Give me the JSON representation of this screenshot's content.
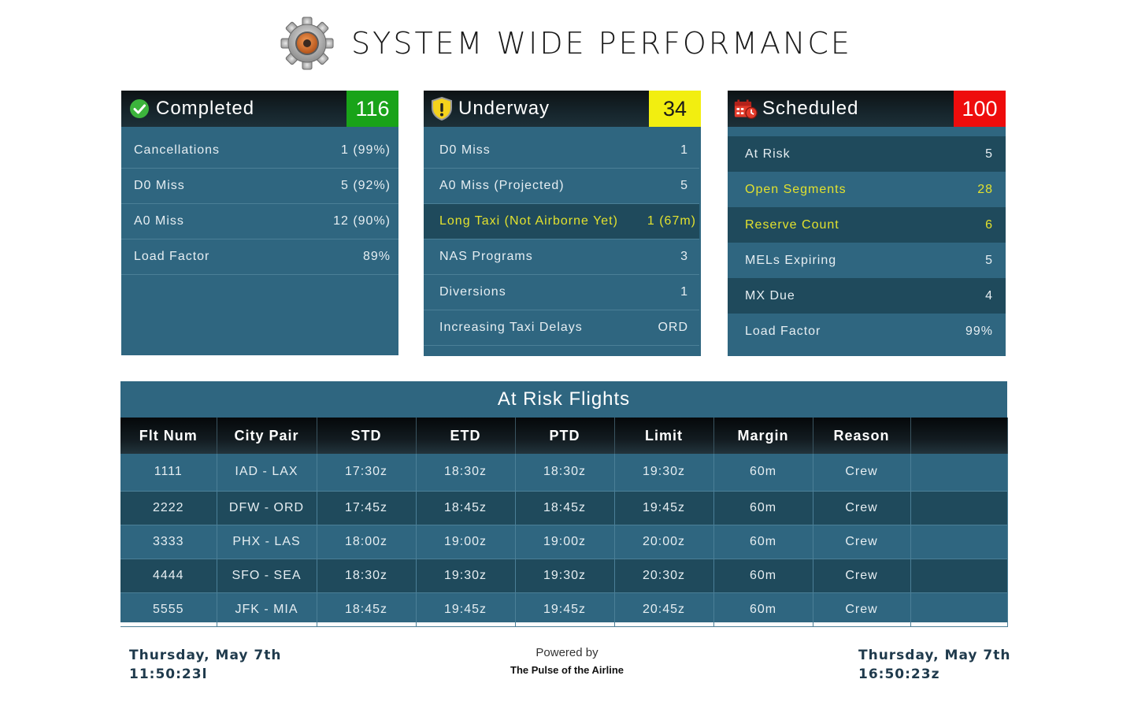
{
  "header": {
    "title": "SYSTEM WIDE PERFORMANCE"
  },
  "panels": {
    "completed": {
      "title": "Completed",
      "count": "116",
      "rows": [
        {
          "label": "Cancellations",
          "value": "1 (99%)"
        },
        {
          "label": "D0 Miss",
          "value": "5 (92%)"
        },
        {
          "label": "A0 Miss",
          "value": "12 (90%)"
        },
        {
          "label": "Load Factor",
          "value": "89%"
        }
      ]
    },
    "underway": {
      "title": "Underway",
      "count": "34",
      "rows": [
        {
          "label": "D0 Miss",
          "value": "1"
        },
        {
          "label": "A0 Miss (Projected)",
          "value": "5"
        },
        {
          "label": "Long Taxi (Not Airborne Yet)",
          "value": "1 (67m)"
        },
        {
          "label": "NAS Programs",
          "value": "3"
        },
        {
          "label": "Diversions",
          "value": "1"
        },
        {
          "label": "Increasing Taxi Delays",
          "value": "ORD"
        }
      ]
    },
    "scheduled": {
      "title": "Scheduled",
      "count": "100",
      "rows": [
        {
          "label": "At Risk",
          "value": "5"
        },
        {
          "label": "Open Segments",
          "value": "28"
        },
        {
          "label": "Reserve Count",
          "value": "6"
        },
        {
          "label": "MELs Expiring",
          "value": "5"
        },
        {
          "label": "MX Due",
          "value": "4"
        },
        {
          "label": "Load Factor",
          "value": "99%"
        }
      ]
    }
  },
  "at_risk": {
    "title": "At Risk Flights",
    "columns": [
      "Flt Num",
      "City Pair",
      "STD",
      "ETD",
      "PTD",
      "Limit",
      "Margin",
      "Reason"
    ],
    "rows": [
      [
        "1111",
        "IAD - LAX",
        "17:30z",
        "18:30z",
        "18:30z",
        "19:30z",
        "60m",
        "Crew"
      ],
      [
        "2222",
        "DFW - ORD",
        "17:45z",
        "18:45z",
        "18:45z",
        "19:45z",
        "60m",
        "Crew"
      ],
      [
        "3333",
        "PHX - LAS",
        "18:00z",
        "19:00z",
        "19:00z",
        "20:00z",
        "60m",
        "Crew"
      ],
      [
        "4444",
        "SFO - SEA",
        "18:30z",
        "19:30z",
        "19:30z",
        "20:30z",
        "60m",
        "Crew"
      ],
      [
        "5555",
        "JFK - MIA",
        "18:45z",
        "19:45z",
        "19:45z",
        "20:45z",
        "60m",
        "Crew"
      ]
    ]
  },
  "footer": {
    "left_date": "Thursday, May 7th",
    "left_time": "11:50:23l",
    "powered_by": "Powered by",
    "brand": "The Pulse of the Airline",
    "right_date": "Thursday, May 7th",
    "right_time": "16:50:23z"
  },
  "colors": {
    "completed": "#19a319",
    "underway": "#f2ee10",
    "scheduled": "#ee0c0c",
    "panel": "#2f6680"
  },
  "icons": {
    "logo": "gear-icon",
    "completed": "check-circle-icon",
    "underway": "warning-shield-icon",
    "scheduled": "calendar-clock-icon"
  }
}
